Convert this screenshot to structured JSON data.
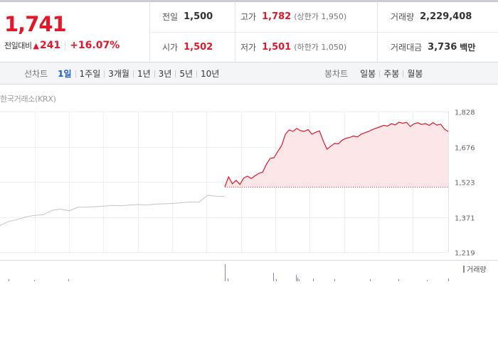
{
  "summary": {
    "price": "1,741",
    "change_label": "전일대비",
    "change_icon": "triangle-up-icon",
    "change_amount": "241",
    "change_rate": "+16.07%"
  },
  "stats": {
    "prev_close": {
      "label": "전일",
      "value": "1,500"
    },
    "open": {
      "label": "시가",
      "value": "1,502"
    },
    "high": {
      "label": "고가",
      "value": "1,782",
      "limit_text": "(상한가 1,950)"
    },
    "low": {
      "label": "저가",
      "value": "1,501",
      "limit_text": "(하한가 1,050)"
    },
    "volume": {
      "label": "거래량",
      "value": "2,229,408"
    },
    "trade_value": {
      "label": "거래대금",
      "value": "3,736",
      "unit": "백만"
    }
  },
  "tabs": {
    "line_chart": {
      "label": "선차트",
      "items": [
        "1일",
        "1주일",
        "3개월",
        "1년",
        "3년",
        "5년",
        "10년"
      ],
      "active": "1일"
    },
    "candle_chart": {
      "label": "봉차트",
      "items": [
        "일봉",
        "주봉",
        "월봉"
      ]
    }
  },
  "chart_source": "한국거래소(KRX)",
  "volume_legend": "거래량",
  "colors": {
    "up": "#e2182a",
    "down": "#1a5fc9",
    "prev_session_line": "#c4c4c4",
    "area_fill": "#fde6e8",
    "volume_bar": "#8c7fbf"
  },
  "chart_data": {
    "type": "line",
    "ylim": [
      1219,
      1828
    ],
    "y_ticks": [
      "1,828",
      "1,676",
      "1,523",
      "1,371",
      "1,219"
    ],
    "baseline": 1500,
    "series": [
      {
        "values": [
          1335,
          1352,
          1360,
          1372,
          1378,
          1381,
          1400,
          1405,
          1398,
          1413,
          1414,
          1416,
          1418,
          1421,
          1420,
          1423,
          1425,
          1423,
          1427,
          1428,
          1430,
          1433,
          1436,
          1435,
          1465,
          1461,
          1460
        ],
        "style": "previous_session"
      },
      {
        "values": [
          1502,
          1545,
          1515,
          1530,
          1512,
          1540,
          1548,
          1538,
          1550,
          1560,
          1565,
          1600,
          1625,
          1628,
          1655,
          1680,
          1730,
          1748,
          1742,
          1755,
          1745,
          1742,
          1750,
          1730,
          1738,
          1744,
          1700,
          1665,
          1678,
          1690,
          1688,
          1704,
          1712,
          1716,
          1722,
          1718,
          1730,
          1736,
          1742,
          1750,
          1756,
          1762,
          1768,
          1765,
          1775,
          1770,
          1782,
          1777,
          1781,
          1763,
          1775,
          1779,
          1772,
          1776,
          1768,
          1780,
          1769,
          1773,
          1752,
          1741
        ],
        "style": "today"
      }
    ]
  }
}
